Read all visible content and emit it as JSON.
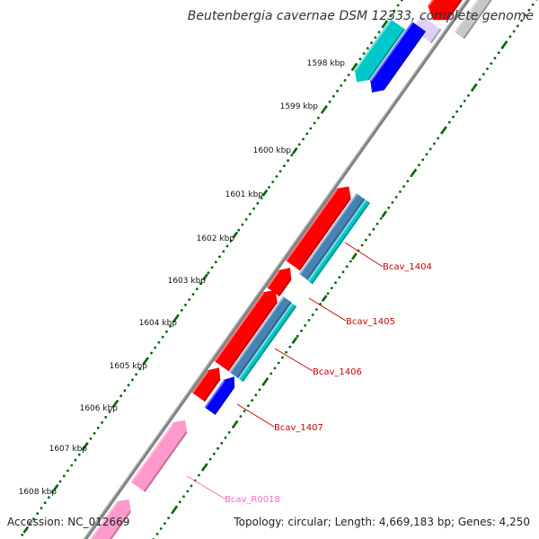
{
  "title": "Beutenbergia cavernae DSM 12333, complete genome",
  "footer": {
    "accession": "Accession: NC_012669",
    "summary": "Topology: circular; Length: 4,669,183 bp; Genes: 4,250"
  },
  "ticks": [
    "1598 kbp",
    "1599 kbp",
    "1600 kbp",
    "1601 kbp",
    "1602 kbp",
    "1603 kbp",
    "1604 kbp",
    "1605 kbp",
    "1606 kbp",
    "1607 kbp",
    "1608 kbp"
  ],
  "gene_labels": [
    "Bcav_1404",
    "Bcav_1405",
    "Bcav_1406",
    "Bcav_1407",
    "Bcav_R0018"
  ],
  "colors": {
    "cds_red": "#ff0000",
    "blue": "#0000ff",
    "cyan": "#00c8c8",
    "steelblue": "#4682b4",
    "pink": "#ff99cc",
    "gray": "#c8c8c8",
    "backbone": "#808080",
    "tick_green": "#006600",
    "label_red": "#cc0000",
    "label_pink": "#ff66cc"
  }
}
